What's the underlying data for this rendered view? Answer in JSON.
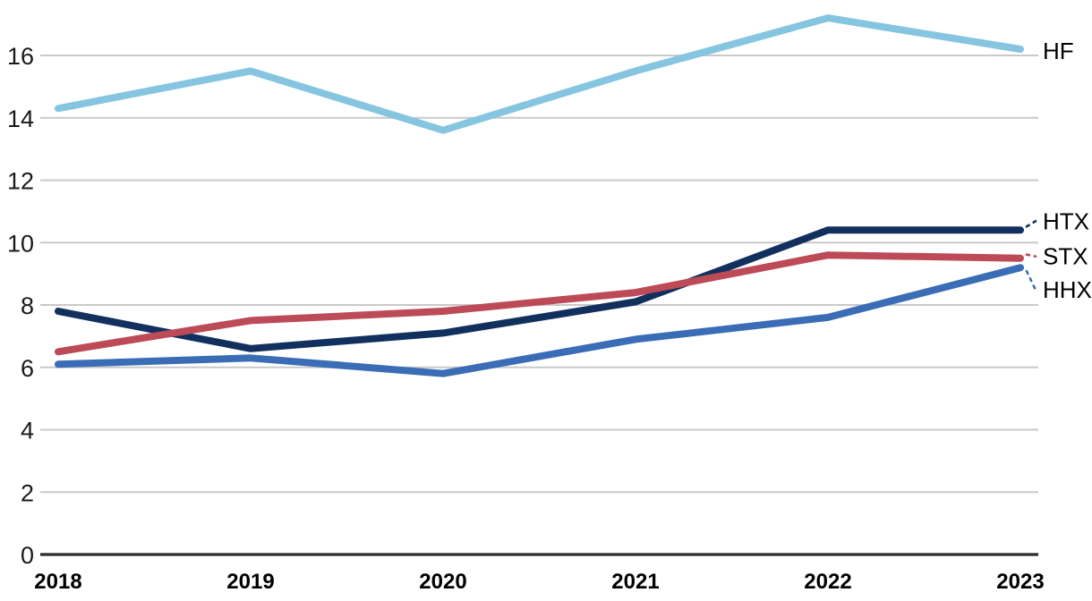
{
  "page": {
    "background": "#ffffff",
    "text_color": "#1a1a1a"
  },
  "chart_data": {
    "type": "line",
    "title": "",
    "xlabel": "",
    "ylabel": "",
    "categories": [
      "2018",
      "2019",
      "2020",
      "2021",
      "2022",
      "2023"
    ],
    "series": [
      {
        "name": "HF",
        "color": "#85C5E0",
        "values": [
          14.3,
          15.5,
          13.6,
          15.5,
          17.2,
          16.2
        ],
        "leader": false
      },
      {
        "name": "HTX",
        "color": "#12305E",
        "values": [
          7.8,
          6.6,
          7.1,
          8.1,
          10.4,
          10.4
        ],
        "leader": true
      },
      {
        "name": "STX",
        "color": "#BC4A57",
        "values": [
          6.5,
          7.5,
          7.8,
          8.4,
          9.6,
          9.5
        ],
        "leader": true
      },
      {
        "name": "HHX",
        "color": "#3A6DB5",
        "values": [
          6.1,
          6.3,
          5.8,
          6.9,
          7.6,
          9.2
        ],
        "leader": true
      }
    ],
    "yticks": [
      0,
      2,
      4,
      6,
      8,
      10,
      12,
      14,
      16
    ],
    "ylim": [
      0,
      17.8
    ],
    "grid": true,
    "grid_color": "#c9c9c9",
    "axis_color": "#2b2b2b",
    "tick_text_color": "#1a1a1a",
    "label_text_color": "#000000",
    "legend_position": "line-end-labels-right",
    "line_width": 8
  }
}
